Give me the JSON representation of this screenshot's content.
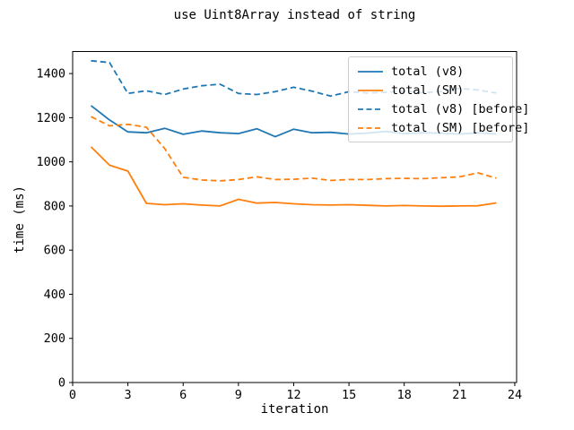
{
  "chart_data": {
    "type": "line",
    "title": "use Uint8Array instead of string",
    "xlabel": "iteration",
    "ylabel": "time (ms)",
    "xlim": [
      0,
      24.1
    ],
    "ylim": [
      0,
      1500
    ],
    "xticks": [
      0,
      3,
      6,
      9,
      12,
      15,
      18,
      21,
      24
    ],
    "yticks": [
      0,
      200,
      400,
      600,
      800,
      1000,
      1200,
      1400
    ],
    "grid": false,
    "legend_position": "upper right",
    "background_color": "#ffffff",
    "axis_color": "#000000",
    "legend_border_color": "#cccccc",
    "x": [
      1,
      2,
      3,
      4,
      5,
      6,
      7,
      8,
      9,
      10,
      11,
      12,
      13,
      14,
      15,
      16,
      17,
      18,
      19,
      20,
      21,
      22,
      23
    ],
    "series": [
      {
        "name": "total (v8)",
        "color": "#1f77b4",
        "style": "solid",
        "values": [
          1255,
          1190,
          1136,
          1132,
          1152,
          1125,
          1140,
          1132,
          1128,
          1150,
          1114,
          1148,
          1132,
          1134,
          1126,
          1130,
          1138,
          1128,
          1132,
          1130,
          1126,
          1132,
          1126
        ]
      },
      {
        "name": "total (SM)",
        "color": "#ff7f0e",
        "style": "solid",
        "values": [
          1068,
          985,
          958,
          812,
          806,
          810,
          804,
          800,
          830,
          813,
          816,
          810,
          806,
          804,
          806,
          803,
          800,
          802,
          800,
          799,
          800,
          801,
          814
        ]
      },
      {
        "name": "total (v8) [before]",
        "color": "#1f77b4",
        "style": "dashed",
        "values": [
          1458,
          1450,
          1310,
          1322,
          1305,
          1330,
          1345,
          1352,
          1310,
          1305,
          1318,
          1338,
          1320,
          1298,
          1318,
          1312,
          1315,
          1320,
          1313,
          1319,
          1333,
          1326,
          1312
        ]
      },
      {
        "name": "total (SM) [before]",
        "color": "#ff7f0e",
        "style": "dashed",
        "values": [
          1205,
          1163,
          1170,
          1157,
          1060,
          930,
          918,
          914,
          920,
          932,
          920,
          921,
          926,
          916,
          920,
          920,
          924,
          925,
          924,
          928,
          932,
          950,
          926
        ]
      }
    ]
  }
}
